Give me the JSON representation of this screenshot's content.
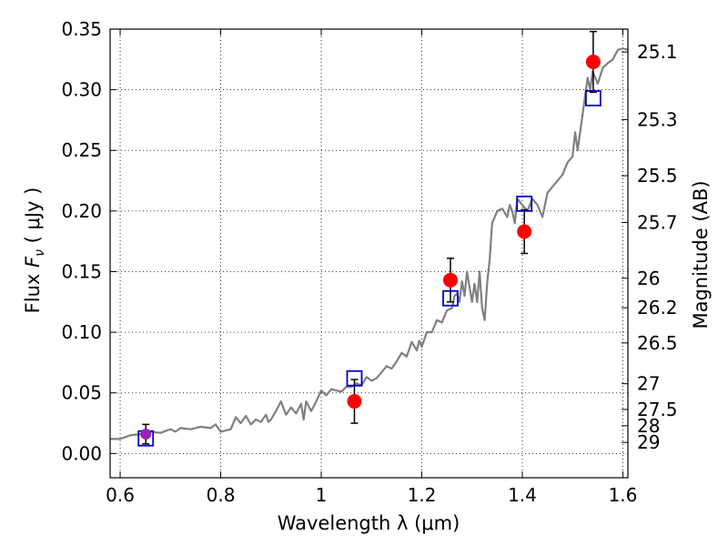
{
  "chart_data": {
    "type": "line",
    "xlabel": "Wavelength  λ (μm)",
    "ylabel": "Flux  F<sub>ν</sub>  ( μJy )",
    "ylabel_parts": {
      "pre": "Flux  ",
      "symbol": "F",
      "subscript": "ν",
      "post": "  ( μJy )"
    },
    "y2label": "Magnitude (AB)",
    "xlim": [
      0.58,
      1.61
    ],
    "ylim": [
      -0.02,
      0.35
    ],
    "grid": true,
    "x_ticks": [
      0.6,
      0.8,
      1.0,
      1.2,
      1.4,
      1.6
    ],
    "x_tick_labels": [
      "0.6",
      "0.8",
      "1",
      "1.2",
      "1.4",
      "1.6"
    ],
    "y_ticks": [
      0.0,
      0.05,
      0.1,
      0.15,
      0.2,
      0.25,
      0.3,
      0.35
    ],
    "y_tick_labels": [
      "0.00",
      "0.05",
      "0.10",
      "0.15",
      "0.20",
      "0.25",
      "0.30",
      "0.35"
    ],
    "y2_ticks": [
      {
        "label": "25.1",
        "mag": 25.1
      },
      {
        "label": "25.3",
        "mag": 25.3
      },
      {
        "label": "25.5",
        "mag": 25.5
      },
      {
        "label": "25.7",
        "mag": 25.7
      },
      {
        "label": "26",
        "mag": 26.0
      },
      {
        "label": "26.2",
        "mag": 26.2
      },
      {
        "label": "26.5",
        "mag": 26.5
      },
      {
        "label": "27",
        "mag": 27.0
      },
      {
        "label": "27.5",
        "mag": 27.5
      },
      {
        "label": "28",
        "mag": 28.0
      },
      {
        "label": "29",
        "mag": 29.0
      }
    ],
    "series": [
      {
        "kind": "spectrum",
        "color": "#808080",
        "points": [
          [
            0.58,
            0.012
          ],
          [
            0.6,
            0.012
          ],
          [
            0.62,
            0.015
          ],
          [
            0.64,
            0.016
          ],
          [
            0.65,
            0.015
          ],
          [
            0.66,
            0.018
          ],
          [
            0.68,
            0.017
          ],
          [
            0.7,
            0.02
          ],
          [
            0.71,
            0.018
          ],
          [
            0.72,
            0.021
          ],
          [
            0.74,
            0.02
          ],
          [
            0.76,
            0.022
          ],
          [
            0.78,
            0.021
          ],
          [
            0.79,
            0.024
          ],
          [
            0.8,
            0.018
          ],
          [
            0.82,
            0.02
          ],
          [
            0.83,
            0.03
          ],
          [
            0.84,
            0.025
          ],
          [
            0.85,
            0.031
          ],
          [
            0.86,
            0.024
          ],
          [
            0.87,
            0.028
          ],
          [
            0.88,
            0.026
          ],
          [
            0.89,
            0.032
          ],
          [
            0.895,
            0.026
          ],
          [
            0.9,
            0.028
          ],
          [
            0.91,
            0.035
          ],
          [
            0.92,
            0.043
          ],
          [
            0.93,
            0.032
          ],
          [
            0.94,
            0.038
          ],
          [
            0.95,
            0.033
          ],
          [
            0.96,
            0.041
          ],
          [
            0.965,
            0.028
          ],
          [
            0.97,
            0.043
          ],
          [
            0.98,
            0.035
          ],
          [
            0.99,
            0.043
          ],
          [
            1.0,
            0.052
          ],
          [
            1.01,
            0.048
          ],
          [
            1.02,
            0.053
          ],
          [
            1.03,
            0.052
          ],
          [
            1.04,
            0.051
          ],
          [
            1.05,
            0.055
          ],
          [
            1.06,
            0.055
          ],
          [
            1.07,
            0.058
          ],
          [
            1.08,
            0.056
          ],
          [
            1.09,
            0.063
          ],
          [
            1.1,
            0.06
          ],
          [
            1.11,
            0.062
          ],
          [
            1.12,
            0.067
          ],
          [
            1.13,
            0.072
          ],
          [
            1.14,
            0.07
          ],
          [
            1.15,
            0.076
          ],
          [
            1.16,
            0.083
          ],
          [
            1.17,
            0.08
          ],
          [
            1.18,
            0.092
          ],
          [
            1.19,
            0.085
          ],
          [
            1.195,
            0.093
          ],
          [
            1.2,
            0.088
          ],
          [
            1.21,
            0.1
          ],
          [
            1.22,
            0.1
          ],
          [
            1.23,
            0.11
          ],
          [
            1.24,
            0.108
          ],
          [
            1.25,
            0.118
          ],
          [
            1.26,
            0.12
          ],
          [
            1.265,
            0.13
          ],
          [
            1.27,
            0.132
          ],
          [
            1.275,
            0.125
          ],
          [
            1.28,
            0.142
          ],
          [
            1.285,
            0.13
          ],
          [
            1.29,
            0.15
          ],
          [
            1.3,
            0.125
          ],
          [
            1.305,
            0.14
          ],
          [
            1.31,
            0.125
          ],
          [
            1.315,
            0.15
          ],
          [
            1.32,
            0.12
          ],
          [
            1.325,
            0.11
          ],
          [
            1.33,
            0.14
          ],
          [
            1.335,
            0.16
          ],
          [
            1.34,
            0.19
          ],
          [
            1.35,
            0.2
          ],
          [
            1.36,
            0.202
          ],
          [
            1.37,
            0.195
          ],
          [
            1.375,
            0.205
          ],
          [
            1.38,
            0.2
          ],
          [
            1.385,
            0.19
          ],
          [
            1.39,
            0.21
          ],
          [
            1.4,
            0.205
          ],
          [
            1.41,
            0.2
          ],
          [
            1.42,
            0.21
          ],
          [
            1.43,
            0.205
          ],
          [
            1.44,
            0.195
          ],
          [
            1.45,
            0.215
          ],
          [
            1.46,
            0.22
          ],
          [
            1.47,
            0.225
          ],
          [
            1.48,
            0.23
          ],
          [
            1.49,
            0.24
          ],
          [
            1.5,
            0.245
          ],
          [
            1.505,
            0.265
          ],
          [
            1.51,
            0.25
          ],
          [
            1.515,
            0.265
          ],
          [
            1.52,
            0.28
          ],
          [
            1.525,
            0.295
          ],
          [
            1.53,
            0.31
          ],
          [
            1.535,
            0.3
          ],
          [
            1.54,
            0.315
          ],
          [
            1.55,
            0.305
          ],
          [
            1.56,
            0.318
          ],
          [
            1.57,
            0.322
          ],
          [
            1.58,
            0.325
          ],
          [
            1.59,
            0.333
          ],
          [
            1.6,
            0.334
          ],
          [
            1.61,
            0.333
          ]
        ]
      },
      {
        "kind": "model-squares",
        "color": "#0000cc",
        "x": [
          0.651,
          1.066,
          1.257,
          1.404,
          1.541
        ],
        "y": [
          0.0125,
          0.062,
          0.128,
          0.206,
          0.293
        ]
      },
      {
        "kind": "observed-points",
        "color": "#ff0000",
        "first_point_color": "#9b1fba",
        "x": [
          0.651,
          1.066,
          1.257,
          1.404,
          1.541
        ],
        "y": [
          0.016,
          0.043,
          0.143,
          0.183,
          0.323
        ],
        "yerr": [
          0.008,
          0.018,
          0.018,
          0.018,
          0.025
        ]
      }
    ]
  }
}
